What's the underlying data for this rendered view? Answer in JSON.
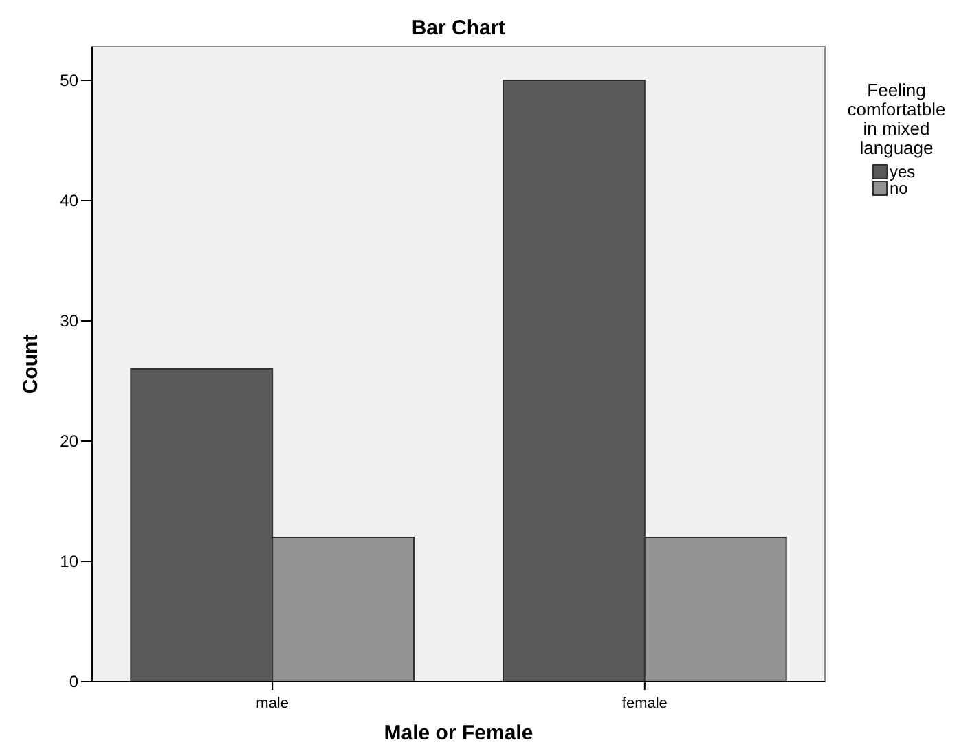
{
  "chart_data": {
    "type": "bar",
    "title": "Bar Chart",
    "xlabel": "Male or Female",
    "ylabel": "Count",
    "legend_title": "Feeling comfortatble in mixed language",
    "categories": [
      "male",
      "female"
    ],
    "series": [
      {
        "name": "yes",
        "color": "#5a5a5a",
        "values": [
          26,
          50
        ]
      },
      {
        "name": "no",
        "color": "#939393",
        "values": [
          12,
          12
        ]
      }
    ],
    "ylim": [
      0,
      52.8
    ],
    "yticks": [
      0,
      10,
      20,
      30,
      40,
      50
    ],
    "grid": false,
    "legend": "right"
  }
}
